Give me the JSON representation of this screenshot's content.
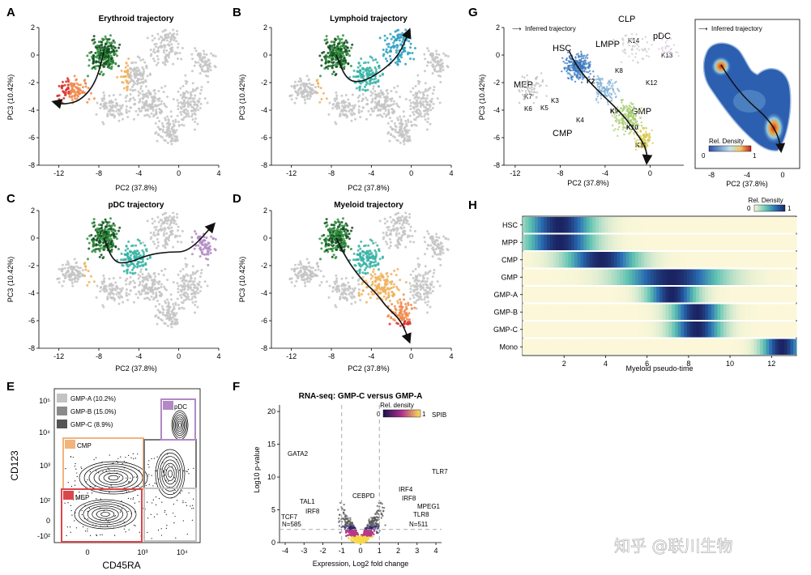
{
  "colors": {
    "gray": "#c4c4c4",
    "erythroid_dark": "#d7302c",
    "erythroid_mid": "#f08a4b",
    "green_dark": "#0f4d1d",
    "green_mid": "#2f8f3c",
    "teal": "#36b3a4",
    "orange": "#f0b15c",
    "purple": "#b08bc4",
    "lymph_blue": "#2a9fbf"
  },
  "panelA": {
    "letter": "A",
    "title": "Erythroid trajectory",
    "xlabel": "PC2 (37.8%)",
    "ylabel": "PC3 (10.42%)"
  },
  "panelB": {
    "letter": "B",
    "title": "Lymphoid trajectory",
    "xlabel": "PC2 (37.8%)",
    "ylabel": "PC3 (10.42%)"
  },
  "panelC": {
    "letter": "C",
    "title": "pDC trajectory",
    "xlabel": "PC2 (37.8%)",
    "ylabel": "PC3 (10.42%)"
  },
  "panelD": {
    "letter": "D",
    "title": "Myeloid trajectory",
    "xlabel": "PC2 (37.8%)",
    "ylabel": "PC3 (10.42%)"
  },
  "scatter_axes": {
    "xticks": [
      "-12",
      "-8",
      "-4",
      "0",
      "4"
    ],
    "yticks": [
      "2",
      "0",
      "-2",
      "-4",
      "-6",
      "-8"
    ]
  },
  "panelG": {
    "letter": "G",
    "legend": "Inferred trajectory",
    "xlabel": "PC2 (37.8%)",
    "ylabel": "PC3 (10.42%)",
    "xticks": [
      "-12",
      "-8",
      "-4",
      "0"
    ],
    "yticks": [
      "2",
      "0",
      "-2",
      "-4",
      "-6",
      "-8"
    ],
    "populations": [
      "CLP",
      "pDC",
      "HSC",
      "LMPP",
      "MEP",
      "GMP",
      "CMP"
    ],
    "clusters": [
      "K1",
      "K2",
      "K3",
      "K4",
      "K5",
      "K6",
      "K7",
      "K8",
      "K9",
      "K10",
      "K11",
      "K12",
      "K13",
      "K14"
    ],
    "density_legend": "Inferred trajectory",
    "density_label": "Rel. Density",
    "density_min": "0",
    "density_max": "1",
    "density_xticks": [
      "-8",
      "-4",
      "0"
    ]
  },
  "panelH": {
    "letter": "H",
    "legend_title": "Rel. Density",
    "legend_min": "0",
    "legend_max": "1",
    "rows": [
      "HSC",
      "MPP",
      "CMP",
      "GMP",
      "GMP-A",
      "GMP-B",
      "GMP-C",
      "Mono"
    ],
    "xticks": [
      "2",
      "4",
      "6",
      "8",
      "10",
      "12"
    ],
    "xlabel": "Myeloid pseudo-time"
  },
  "panelE": {
    "letter": "E",
    "legend": [
      "GMP-A (10.2%)",
      "GMP-B (15.0%)",
      "GMP-C (8.9%)"
    ],
    "gates": [
      "pDC",
      "CMP",
      "MEP"
    ],
    "ylabel": "CD123",
    "xlabel": "CD45RA",
    "yticks": [
      "10⁵",
      "10⁴",
      "10³",
      "10²",
      "0",
      "-10²"
    ],
    "xticks": [
      "0",
      "10³",
      "10⁴"
    ]
  },
  "panelF": {
    "letter": "F",
    "title": "RNA-seq: GMP-C versus GMP-A",
    "legend": "Rel. density",
    "legend_min": "0",
    "legend_max": "1",
    "genes_left": [
      "GATA2",
      "TAL1",
      "IRF8",
      "TCF7"
    ],
    "genes_right": [
      "SPIB",
      "TLR7",
      "IRF4",
      "IRF8",
      "MPEG1",
      "TLR8"
    ],
    "center_gene": "CEBPD",
    "n_left": "N=585",
    "n_right": "N=511",
    "ylabel": "Log10 p-value",
    "xlabel": "Expression, Log2 fold change",
    "yticks": [
      "20",
      "15",
      "10",
      "5",
      "0"
    ],
    "xticks": [
      "-4",
      "-3",
      "-2",
      "-1",
      "0",
      "1",
      "2",
      "3",
      "4"
    ]
  },
  "watermark": "知乎 @联川生物",
  "chart_data": [
    {
      "type": "scatter",
      "title": "Erythroid trajectory",
      "xlabel": "PC2 (37.8%)",
      "ylabel": "PC3 (10.42%)",
      "xlim": [
        -14,
        4
      ],
      "ylim": [
        -8,
        2
      ],
      "trajectory": {
        "x": [
          -7.5,
          -8.3,
          -9.8,
          -11.5,
          -12.5
        ],
        "y": [
          0.2,
          -2.0,
          -3.3,
          -3.6,
          -3.4
        ]
      }
    },
    {
      "type": "scatter",
      "title": "Lymphoid trajectory",
      "xlabel": "PC2 (37.8%)",
      "ylabel": "PC3 (10.42%)",
      "xlim": [
        -14,
        4
      ],
      "ylim": [
        -8,
        2
      ],
      "trajectory": {
        "x": [
          -7.5,
          -6.5,
          -5.0,
          -3.0,
          -1.2,
          -0.2
        ],
        "y": [
          0.0,
          -1.8,
          -2.0,
          -1.2,
          0.0,
          1.8
        ]
      }
    },
    {
      "type": "scatter",
      "title": "pDC trajectory",
      "xlabel": "PC2 (37.8%)",
      "ylabel": "PC3 (10.42%)",
      "xlim": [
        -14,
        4
      ],
      "ylim": [
        -8,
        2
      ],
      "trajectory": {
        "x": [
          -7.5,
          -6.5,
          -5.0,
          -3.0,
          -1.0,
          1.0,
          3.5
        ],
        "y": [
          0.0,
          -1.8,
          -1.8,
          -1.2,
          -1.0,
          -1.0,
          1.0
        ]
      }
    },
    {
      "type": "scatter",
      "title": "Myeloid trajectory",
      "xlabel": "PC2 (37.8%)",
      "ylabel": "PC3 (10.42%)",
      "xlim": [
        -14,
        4
      ],
      "ylim": [
        -8,
        2
      ],
      "trajectory": {
        "x": [
          -7.5,
          -6.5,
          -5.0,
          -3.5,
          -2.5,
          -1.0,
          -0.2
        ],
        "y": [
          0.0,
          -1.5,
          -3.0,
          -4.0,
          -5.0,
          -6.0,
          -7.5
        ]
      }
    },
    {
      "type": "heatmap",
      "title": "Myeloid pseudo-time",
      "rows": [
        "HSC",
        "MPP",
        "CMP",
        "GMP",
        "GMP-A",
        "GMP-B",
        "GMP-C",
        "Mono"
      ],
      "x_range": [
        0,
        13.2
      ],
      "peaks": [
        1.8,
        1.8,
        3.8,
        7.2,
        7.2,
        8.4,
        8.4,
        12.5
      ]
    },
    {
      "type": "scatter",
      "title": "RNA-seq: GMP-C versus GMP-A",
      "xlabel": "Expression, Log2 fold change",
      "ylabel": "Log10 p-value",
      "xlim": [
        -4.3,
        4.3
      ],
      "ylim": [
        0,
        21
      ]
    }
  ]
}
